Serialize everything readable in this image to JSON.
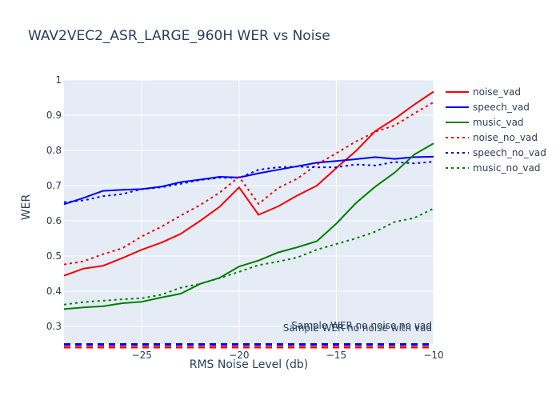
{
  "chart_data": {
    "type": "line",
    "title": "WAV2VEC2_ASR_LARGE_960H WER vs Noise",
    "xlabel": "RMS Noise Level (db)",
    "ylabel": "WER",
    "xlim": [
      -29,
      -10
    ],
    "ylim": [
      0.25,
      1.0
    ],
    "xticks": [
      -25,
      -20,
      -15,
      -10
    ],
    "xtick_labels": [
      "−25",
      "−20",
      "−15",
      "−10"
    ],
    "yticks": [
      0.3,
      0.4,
      0.5,
      0.6,
      0.7,
      0.8,
      0.9,
      1.0
    ],
    "ytick_labels": [
      "0.3",
      "0.4",
      "0.5",
      "0.6",
      "0.7",
      "0.8",
      "0.9",
      "1"
    ],
    "grid": true,
    "legend_position": "right",
    "x": [
      -29,
      -28,
      -27,
      -26,
      -25,
      -24,
      -23,
      -22,
      -21,
      -20,
      -19,
      -18,
      -17,
      -16,
      -15,
      -14,
      -13,
      -12,
      -11,
      -10
    ],
    "series": [
      {
        "name": "noise_vad",
        "color": "#ff0000",
        "dash": "solid",
        "values": [
          0.444,
          0.464,
          0.472,
          0.494,
          0.518,
          0.538,
          0.563,
          0.6,
          0.64,
          0.695,
          0.617,
          0.641,
          0.672,
          0.7,
          0.75,
          0.798,
          0.855,
          0.89,
          0.93,
          0.967
        ]
      },
      {
        "name": "speech_vad",
        "color": "#0000ff",
        "dash": "solid",
        "values": [
          0.647,
          0.665,
          0.685,
          0.688,
          0.69,
          0.697,
          0.71,
          0.717,
          0.725,
          0.723,
          0.735,
          0.745,
          0.755,
          0.765,
          0.77,
          0.775,
          0.781,
          0.776,
          0.781,
          0.782
        ]
      },
      {
        "name": "music_vad",
        "color": "#008000",
        "dash": "solid",
        "values": [
          0.349,
          0.354,
          0.357,
          0.366,
          0.37,
          0.382,
          0.393,
          0.421,
          0.438,
          0.47,
          0.487,
          0.51,
          0.525,
          0.542,
          0.592,
          0.65,
          0.697,
          0.737,
          0.788,
          0.82
        ]
      },
      {
        "name": "noise_no_vad",
        "color": "#ff0000",
        "dash": "dot",
        "values": [
          0.476,
          0.485,
          0.505,
          0.522,
          0.556,
          0.583,
          0.615,
          0.645,
          0.68,
          0.725,
          0.648,
          0.693,
          0.72,
          0.76,
          0.792,
          0.825,
          0.853,
          0.871,
          0.905,
          0.937
        ]
      },
      {
        "name": "speech_no_vad",
        "color": "#0000ff",
        "dash": "dot",
        "values": [
          0.653,
          0.658,
          0.67,
          0.676,
          0.69,
          0.695,
          0.705,
          0.716,
          0.722,
          0.722,
          0.745,
          0.752,
          0.754,
          0.752,
          0.752,
          0.76,
          0.757,
          0.767,
          0.763,
          0.768
        ]
      },
      {
        "name": "music_no_vad",
        "color": "#008000",
        "dash": "dot",
        "values": [
          0.362,
          0.369,
          0.373,
          0.377,
          0.38,
          0.39,
          0.41,
          0.421,
          0.437,
          0.455,
          0.474,
          0.484,
          0.496,
          0.518,
          0.534,
          0.55,
          0.569,
          0.597,
          0.608,
          0.635
        ]
      }
    ],
    "reference_lines": [
      {
        "label": "Sample WER no noise no vad",
        "value": 0.249,
        "color": "#0000ff",
        "dash": "dash"
      },
      {
        "label": "Sample WER no noise with vad",
        "value": 0.241,
        "color": "#ff0000",
        "dash": "dash"
      }
    ]
  }
}
